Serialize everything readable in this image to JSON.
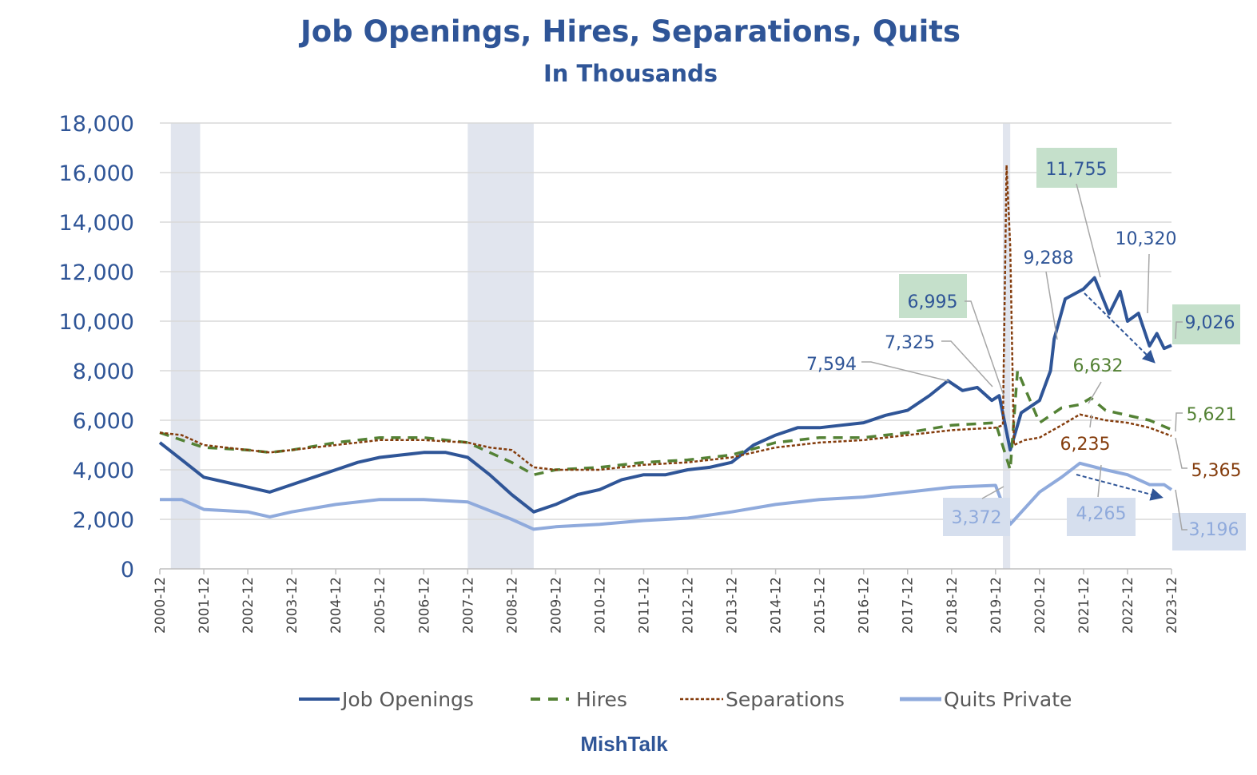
{
  "chart_data": {
    "type": "line",
    "title": "Job Openings, Hires, Separations, Quits",
    "subtitle": "In Thousands",
    "xlabel": "",
    "ylabel": "",
    "ylim": [
      0,
      18000
    ],
    "yticks": [
      "0",
      "2,000",
      "4,000",
      "6,000",
      "8,000",
      "10,000",
      "12,000",
      "14,000",
      "16,000",
      "18,000"
    ],
    "xrange": [
      "2000-12",
      "2023-12"
    ],
    "xticks": [
      "2000-12",
      "2001-12",
      "2002-12",
      "2003-12",
      "2004-12",
      "2005-12",
      "2006-12",
      "2007-12",
      "2008-12",
      "2009-12",
      "2010-12",
      "2011-12",
      "2012-12",
      "2013-12",
      "2014-12",
      "2015-12",
      "2016-12",
      "2017-12",
      "2018-12",
      "2019-12",
      "2020-12",
      "2021-12",
      "2022-12",
      "2023-12"
    ],
    "grid": true,
    "legend_position": "bottom",
    "recessions": [
      [
        "2001-03",
        "2001-11"
      ],
      [
        "2007-12",
        "2009-06"
      ],
      [
        "2020-02",
        "2020-04"
      ]
    ],
    "series": [
      {
        "name": "Job Openings",
        "color": "#2f5597",
        "style": "solid",
        "points": [
          [
            "2000-12",
            5100
          ],
          [
            "2001-06",
            4400
          ],
          [
            "2001-12",
            3700
          ],
          [
            "2002-06",
            3500
          ],
          [
            "2002-12",
            3300
          ],
          [
            "2003-06",
            3100
          ],
          [
            "2003-12",
            3400
          ],
          [
            "2004-06",
            3700
          ],
          [
            "2004-12",
            4000
          ],
          [
            "2005-06",
            4300
          ],
          [
            "2005-12",
            4500
          ],
          [
            "2006-06",
            4600
          ],
          [
            "2006-12",
            4700
          ],
          [
            "2007-06",
            4700
          ],
          [
            "2007-12",
            4500
          ],
          [
            "2008-06",
            3800
          ],
          [
            "2008-12",
            3000
          ],
          [
            "2009-06",
            2300
          ],
          [
            "2009-12",
            2600
          ],
          [
            "2010-06",
            3000
          ],
          [
            "2010-12",
            3200
          ],
          [
            "2011-06",
            3600
          ],
          [
            "2011-12",
            3800
          ],
          [
            "2012-06",
            3800
          ],
          [
            "2012-12",
            4000
          ],
          [
            "2013-06",
            4100
          ],
          [
            "2013-12",
            4300
          ],
          [
            "2014-06",
            5000
          ],
          [
            "2014-12",
            5400
          ],
          [
            "2015-06",
            5700
          ],
          [
            "2015-12",
            5700
          ],
          [
            "2016-06",
            5800
          ],
          [
            "2016-12",
            5900
          ],
          [
            "2017-06",
            6200
          ],
          [
            "2017-12",
            6400
          ],
          [
            "2018-06",
            7000
          ],
          [
            "2018-11",
            7594
          ],
          [
            "2019-03",
            7200
          ],
          [
            "2019-07",
            7325
          ],
          [
            "2019-11",
            6800
          ],
          [
            "2020-01",
            6995
          ],
          [
            "2020-04",
            4800
          ],
          [
            "2020-07",
            6300
          ],
          [
            "2020-12",
            6800
          ],
          [
            "2021-03",
            8000
          ],
          [
            "2021-04",
            9288
          ],
          [
            "2021-07",
            10900
          ],
          [
            "2021-12",
            11300
          ],
          [
            "2022-03",
            11755
          ],
          [
            "2022-07",
            10300
          ],
          [
            "2022-10",
            11200
          ],
          [
            "2022-12",
            10000
          ],
          [
            "2023-03",
            10320
          ],
          [
            "2023-06",
            9000
          ],
          [
            "2023-08",
            9500
          ],
          [
            "2023-10",
            8900
          ],
          [
            "2023-12",
            9026
          ]
        ]
      },
      {
        "name": "Hires",
        "color": "#548235",
        "style": "dashed",
        "points": [
          [
            "2000-12",
            5500
          ],
          [
            "2001-06",
            5200
          ],
          [
            "2001-12",
            4900
          ],
          [
            "2002-12",
            4800
          ],
          [
            "2003-06",
            4700
          ],
          [
            "2003-12",
            4800
          ],
          [
            "2004-12",
            5100
          ],
          [
            "2005-12",
            5300
          ],
          [
            "2006-12",
            5300
          ],
          [
            "2007-12",
            5100
          ],
          [
            "2008-06",
            4700
          ],
          [
            "2008-12",
            4300
          ],
          [
            "2009-06",
            3800
          ],
          [
            "2009-12",
            4000
          ],
          [
            "2010-12",
            4100
          ],
          [
            "2011-12",
            4300
          ],
          [
            "2012-12",
            4400
          ],
          [
            "2013-12",
            4600
          ],
          [
            "2014-12",
            5100
          ],
          [
            "2015-12",
            5300
          ],
          [
            "2016-12",
            5300
          ],
          [
            "2017-12",
            5500
          ],
          [
            "2018-12",
            5800
          ],
          [
            "2019-12",
            5900
          ],
          [
            "2020-04",
            4000
          ],
          [
            "2020-06",
            8000
          ],
          [
            "2020-12",
            5900
          ],
          [
            "2021-06",
            6500
          ],
          [
            "2021-11",
            6632
          ],
          [
            "2022-02",
            6900
          ],
          [
            "2022-06",
            6400
          ],
          [
            "2022-12",
            6200
          ],
          [
            "2023-06",
            6000
          ],
          [
            "2023-12",
            5621
          ]
        ]
      },
      {
        "name": "Separations",
        "color": "#843c0c",
        "style": "dotted",
        "points": [
          [
            "2000-12",
            5500
          ],
          [
            "2001-06",
            5400
          ],
          [
            "2001-12",
            5000
          ],
          [
            "2002-12",
            4800
          ],
          [
            "2003-06",
            4700
          ],
          [
            "2003-12",
            4800
          ],
          [
            "2004-12",
            5000
          ],
          [
            "2005-12",
            5200
          ],
          [
            "2006-12",
            5200
          ],
          [
            "2007-12",
            5100
          ],
          [
            "2008-06",
            4900
          ],
          [
            "2008-12",
            4800
          ],
          [
            "2009-06",
            4100
          ],
          [
            "2009-12",
            4000
          ],
          [
            "2010-12",
            4000
          ],
          [
            "2011-12",
            4200
          ],
          [
            "2012-12",
            4300
          ],
          [
            "2013-12",
            4500
          ],
          [
            "2014-12",
            4900
          ],
          [
            "2015-12",
            5100
          ],
          [
            "2016-12",
            5200
          ],
          [
            "2017-12",
            5400
          ],
          [
            "2018-12",
            5600
          ],
          [
            "2019-12",
            5700
          ],
          [
            "2020-02",
            5800
          ],
          [
            "2020-03",
            16300
          ],
          [
            "2020-04",
            13000
          ],
          [
            "2020-05",
            5000
          ],
          [
            "2020-08",
            5200
          ],
          [
            "2020-12",
            5300
          ],
          [
            "2021-06",
            5800
          ],
          [
            "2021-11",
            6235
          ],
          [
            "2022-06",
            6000
          ],
          [
            "2022-12",
            5900
          ],
          [
            "2023-06",
            5700
          ],
          [
            "2023-12",
            5365
          ]
        ]
      },
      {
        "name": "Quits Private",
        "color": "#8faadc",
        "style": "solid",
        "points": [
          [
            "2000-12",
            2800
          ],
          [
            "2001-06",
            2800
          ],
          [
            "2001-12",
            2400
          ],
          [
            "2002-12",
            2300
          ],
          [
            "2003-06",
            2100
          ],
          [
            "2003-12",
            2300
          ],
          [
            "2004-12",
            2600
          ],
          [
            "2005-12",
            2800
          ],
          [
            "2006-12",
            2800
          ],
          [
            "2007-12",
            2700
          ],
          [
            "2008-12",
            2000
          ],
          [
            "2009-06",
            1600
          ],
          [
            "2009-12",
            1700
          ],
          [
            "2010-12",
            1800
          ],
          [
            "2011-12",
            1950
          ],
          [
            "2012-12",
            2050
          ],
          [
            "2013-12",
            2300
          ],
          [
            "2014-12",
            2600
          ],
          [
            "2015-12",
            2800
          ],
          [
            "2016-12",
            2900
          ],
          [
            "2017-12",
            3100
          ],
          [
            "2018-12",
            3300
          ],
          [
            "2019-12",
            3372
          ],
          [
            "2020-04",
            1800
          ],
          [
            "2020-12",
            3100
          ],
          [
            "2021-06",
            3700
          ],
          [
            "2021-11",
            4265
          ],
          [
            "2022-06",
            4000
          ],
          [
            "2022-12",
            3800
          ],
          [
            "2023-06",
            3400
          ],
          [
            "2023-10",
            3400
          ],
          [
            "2023-12",
            3196
          ]
        ]
      }
    ],
    "annotations": {
      "jo_2018": "7,594",
      "jo_2019": "7,325",
      "jo_2020": "6,995",
      "jo_peak": "11,755",
      "jo_2021": "9,288",
      "jo_2023a": "10,320",
      "jo_last": "9,026",
      "hires_peak": "6,632",
      "hires_last": "5,621",
      "sep_peak": "6,235",
      "sep_last": "5,365",
      "quits_2019": "3,372",
      "quits_peak": "4,265",
      "quits_last": "3,196"
    }
  },
  "footer": "MishTalk"
}
